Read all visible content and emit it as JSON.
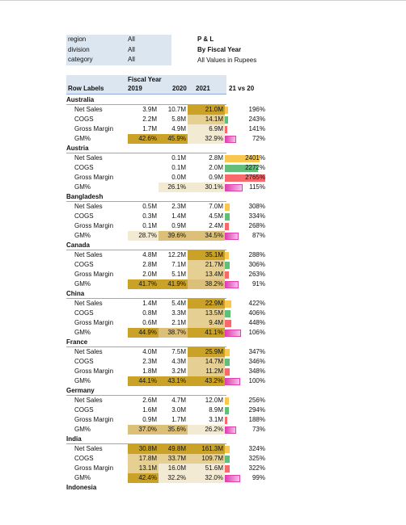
{
  "filters": [
    {
      "label": "region",
      "value": "All"
    },
    {
      "label": "division",
      "value": "All"
    },
    {
      "label": "category",
      "value": "All"
    }
  ],
  "title": {
    "line1": "P & L",
    "line2": "By Fiscal Year",
    "line3": "All Values in Rupees"
  },
  "header": {
    "fiscal_year": "Fiscal Year",
    "row_labels": "Row Labels",
    "y2019": "2019",
    "y2020": "2020",
    "y2021": "2021",
    "vs": "21 vs 20"
  },
  "colors": {
    "ns": "#f9c74f",
    "cogs": "#63be7b",
    "gm": "#f8696b",
    "gmpct": "#e040b0",
    "gold": "#c9a227",
    "lightgold": "#f3ead3"
  },
  "groups": [
    {
      "name": "Australia",
      "rows": [
        {
          "label": "Net Sales",
          "y19": "3.9M",
          "y20": "10.7M",
          "y21": "21.0M",
          "vs": "196%",
          "pct": 196
        },
        {
          "label": "COGS",
          "y19": "2.2M",
          "y20": "5.8M",
          "y21": "14.1M",
          "vs": "243%",
          "pct": 243
        },
        {
          "label": "Gross Margin",
          "y19": "1.7M",
          "y20": "4.9M",
          "y21": "6.9M",
          "vs": "141%",
          "pct": 141
        },
        {
          "label": "GM%",
          "y19": "42.6%",
          "y20": "45.9%",
          "y21": "32.9%",
          "vs": "72%",
          "pct": 72
        }
      ]
    },
    {
      "name": "Austria",
      "rows": [
        {
          "label": "Net Sales",
          "y19": "",
          "y20": "0.1M",
          "y21": "2.8M",
          "vs": "2401%",
          "pct": 2401
        },
        {
          "label": "COGS",
          "y19": "",
          "y20": "0.1M",
          "y21": "2.0M",
          "vs": "2272%",
          "pct": 2272
        },
        {
          "label": "Gross Margin",
          "y19": "",
          "y20": "0.0M",
          "y21": "0.9M",
          "vs": "2765%",
          "pct": 2765
        },
        {
          "label": "GM%",
          "y19": "",
          "y20": "26.1%",
          "y21": "30.1%",
          "vs": "115%",
          "pct": 115
        }
      ]
    },
    {
      "name": "Bangladesh",
      "rows": [
        {
          "label": "Net Sales",
          "y19": "0.5M",
          "y20": "2.3M",
          "y21": "7.0M",
          "vs": "308%",
          "pct": 308
        },
        {
          "label": "COGS",
          "y19": "0.3M",
          "y20": "1.4M",
          "y21": "4.5M",
          "vs": "334%",
          "pct": 334
        },
        {
          "label": "Gross Margin",
          "y19": "0.1M",
          "y20": "0.9M",
          "y21": "2.4M",
          "vs": "268%",
          "pct": 268
        },
        {
          "label": "GM%",
          "y19": "28.7%",
          "y20": "39.6%",
          "y21": "34.5%",
          "vs": "87%",
          "pct": 87
        }
      ]
    },
    {
      "name": "Canada",
      "rows": [
        {
          "label": "Net Sales",
          "y19": "4.8M",
          "y20": "12.2M",
          "y21": "35.1M",
          "vs": "288%",
          "pct": 288
        },
        {
          "label": "COGS",
          "y19": "2.8M",
          "y20": "7.1M",
          "y21": "21.7M",
          "vs": "306%",
          "pct": 306
        },
        {
          "label": "Gross Margin",
          "y19": "2.0M",
          "y20": "5.1M",
          "y21": "13.4M",
          "vs": "263%",
          "pct": 263
        },
        {
          "label": "GM%",
          "y19": "41.7%",
          "y20": "41.9%",
          "y21": "38.2%",
          "vs": "91%",
          "pct": 91
        }
      ]
    },
    {
      "name": "China",
      "rows": [
        {
          "label": "Net Sales",
          "y19": "1.4M",
          "y20": "5.4M",
          "y21": "22.9M",
          "vs": "422%",
          "pct": 422
        },
        {
          "label": "COGS",
          "y19": "0.8M",
          "y20": "3.3M",
          "y21": "13.5M",
          "vs": "406%",
          "pct": 406
        },
        {
          "label": "Gross Margin",
          "y19": "0.6M",
          "y20": "2.1M",
          "y21": "9.4M",
          "vs": "448%",
          "pct": 448
        },
        {
          "label": "GM%",
          "y19": "44.9%",
          "y20": "38.7%",
          "y21": "41.1%",
          "vs": "106%",
          "pct": 106
        }
      ]
    },
    {
      "name": "France",
      "rows": [
        {
          "label": "Net Sales",
          "y19": "4.0M",
          "y20": "7.5M",
          "y21": "25.9M",
          "vs": "347%",
          "pct": 347
        },
        {
          "label": "COGS",
          "y19": "2.3M",
          "y20": "4.3M",
          "y21": "14.7M",
          "vs": "346%",
          "pct": 346
        },
        {
          "label": "Gross Margin",
          "y19": "1.8M",
          "y20": "3.2M",
          "y21": "11.2M",
          "vs": "348%",
          "pct": 348
        },
        {
          "label": "GM%",
          "y19": "44.1%",
          "y20": "43.1%",
          "y21": "43.2%",
          "vs": "100%",
          "pct": 100
        }
      ]
    },
    {
      "name": "Germany",
      "rows": [
        {
          "label": "Net Sales",
          "y19": "2.6M",
          "y20": "4.7M",
          "y21": "12.0M",
          "vs": "256%",
          "pct": 256
        },
        {
          "label": "COGS",
          "y19": "1.6M",
          "y20": "3.0M",
          "y21": "8.9M",
          "vs": "294%",
          "pct": 294
        },
        {
          "label": "Gross Margin",
          "y19": "0.9M",
          "y20": "1.7M",
          "y21": "3.1M",
          "vs": "188%",
          "pct": 188
        },
        {
          "label": "GM%",
          "y19": "37.0%",
          "y20": "35.6%",
          "y21": "26.2%",
          "vs": "73%",
          "pct": 73
        }
      ]
    },
    {
      "name": "India",
      "rows": [
        {
          "label": "Net Sales",
          "y19": "30.8M",
          "y20": "49.8M",
          "y21": "161.3M",
          "vs": "324%",
          "pct": 324
        },
        {
          "label": "COGS",
          "y19": "17.8M",
          "y20": "33.7M",
          "y21": "109.7M",
          "vs": "325%",
          "pct": 325
        },
        {
          "label": "Gross Margin",
          "y19": "13.1M",
          "y20": "16.0M",
          "y21": "51.6M",
          "vs": "322%",
          "pct": 322
        },
        {
          "label": "GM%",
          "y19": "42.4%",
          "y20": "32.2%",
          "y21": "32.0%",
          "vs": "99%",
          "pct": 99
        }
      ]
    },
    {
      "name": "Indonesia",
      "rows": []
    }
  ]
}
